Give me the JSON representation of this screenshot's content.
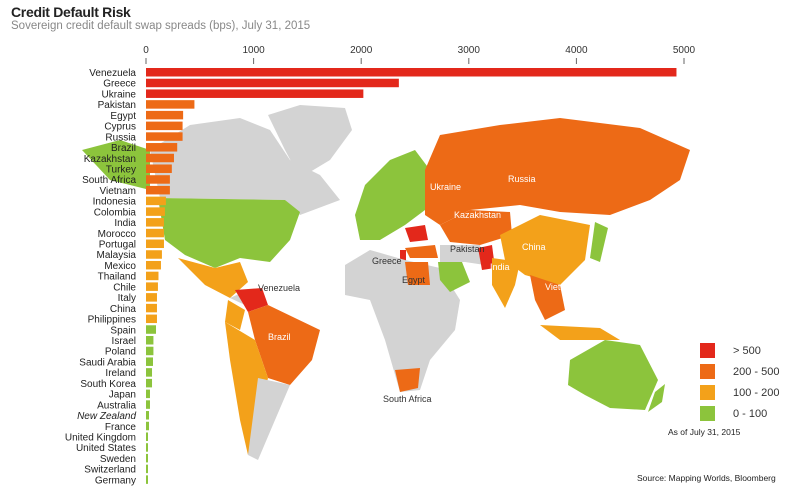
{
  "chart_data": {
    "type": "bar",
    "orientation": "horizontal",
    "title": "Credit Default Risk",
    "subtitle": "Sovereign credit default swap spreads (bps), July 31, 2015",
    "xlim": [
      0,
      5000
    ],
    "xticks": [
      "0",
      "1000",
      "2000",
      "3000",
      "4000",
      "5000"
    ],
    "categories": [
      "Venezuela",
      "Greece",
      "Ukraine",
      "Pakistan",
      "Egypt",
      "Cyprus",
      "Russia",
      "Brazil",
      "Kazakhstan",
      "Turkey",
      "South Africa",
      "Vietnam",
      "Indonesia",
      "Colombia",
      "India",
      "Morocco",
      "Portugal",
      "Malaysia",
      "Mexico",
      "Thailand",
      "Chile",
      "Italy",
      "China",
      "Philippines",
      "Spain",
      "Israel",
      "Poland",
      "Saudi Arabia",
      "Ireland",
      "South Korea",
      "Japan",
      "Australia",
      "New Zealand",
      "France",
      "United Kingdom",
      "United States",
      "Sweden",
      "Switzerland",
      "Germany"
    ],
    "values": [
      4930,
      2350,
      2020,
      450,
      345,
      340,
      340,
      290,
      260,
      240,
      222,
      222,
      185,
      176,
      167,
      167,
      167,
      148,
      139,
      116,
      111,
      102,
      102,
      102,
      93,
      69,
      69,
      65,
      56,
      56,
      37,
      37,
      28,
      28,
      15,
      15,
      15,
      15,
      15
    ],
    "legend": [
      {
        "label": "> 500",
        "color": "#e3281b"
      },
      {
        "label": "200 - 500",
        "color": "#ed6a16"
      },
      {
        "label": "100 - 200",
        "color": "#f3a11a"
      },
      {
        "label": "0 - 100",
        "color": "#8cc43c"
      }
    ],
    "legend_position": "bottom-right",
    "grid": false
  },
  "map_labels": [
    "Venezuela",
    "Brazil",
    "Greece",
    "Egypt",
    "Pakistan",
    "India",
    "China",
    "Vietnam",
    "Ukraine",
    "Russia",
    "Kazakhstan",
    "South Africa"
  ],
  "as_of": "As of July 31, 2015",
  "source": "Source: Mapping Worlds, Bloomberg"
}
